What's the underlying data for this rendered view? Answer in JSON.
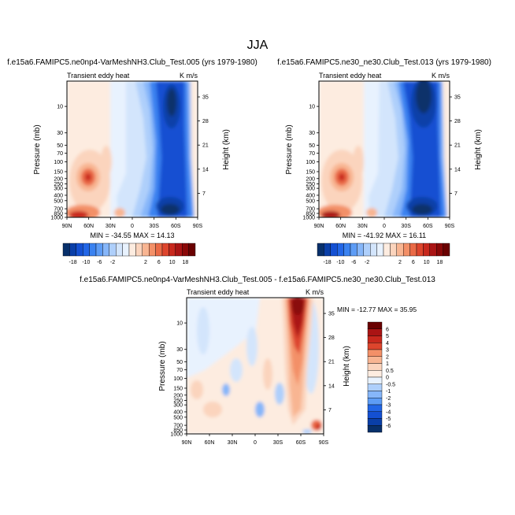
{
  "page_title": "JJA",
  "colors": {
    "neg": [
      "#08306b",
      "#0a3fa8",
      "#1450d2",
      "#2266e6",
      "#3a82f0",
      "#5d9cf5",
      "#86b6f9",
      "#aecffb",
      "#d3e5fc",
      "#e8f2fe"
    ],
    "pos": [
      "#fdece0",
      "#fbd4bd",
      "#f8b592",
      "#f39068",
      "#ea6a46",
      "#dd452d",
      "#c8281d",
      "#aa1414",
      "#8a0808",
      "#6a0000"
    ]
  },
  "chart_data": [
    {
      "type": "heatmap",
      "title": "f.e15a6.FAMIPC5.ne0np4-VarMeshNH3.Club_Test.005 (yrs 1979-1980)",
      "left_label": "Transient eddy heat",
      "right_label": "K m/s",
      "xlabel": "",
      "ylabel": "Pressure (mb)",
      "ylabel_right": "Height (km)",
      "x_ticks": [
        "90N",
        "60N",
        "30N",
        "0",
        "30S",
        "60S",
        "90S"
      ],
      "y_ticks": [
        "10",
        "30",
        "50",
        "70",
        "100",
        "150",
        "200",
        "250",
        "300",
        "400",
        "500",
        "700",
        "850",
        "1000"
      ],
      "y2_ticks": [
        "35",
        "28",
        "21",
        "14",
        "7"
      ],
      "stats": "MIN = -34.55  MAX = 14.13",
      "colorbar_labels": [
        "-18",
        "-10",
        "-6",
        "-2",
        "2",
        "6",
        "10",
        "18"
      ],
      "features": [
        {
          "x": 66,
          "p": 210,
          "value": 10
        },
        {
          "x": 70,
          "p": 950,
          "value": 14
        },
        {
          "x": -58,
          "p": 18,
          "value": -34
        },
        {
          "x": -55,
          "p": 600,
          "value": -25
        }
      ]
    },
    {
      "type": "heatmap",
      "title": "f.e15a6.FAMIPC5.ne30_ne30.Club_Test.013 (yrs 1979-1980)",
      "left_label": "Transient eddy heat",
      "right_label": "K m/s",
      "xlabel": "",
      "ylabel": "Pressure (mb)",
      "ylabel_right": "Height (km)",
      "x_ticks": [
        "90N",
        "60N",
        "30N",
        "0",
        "30S",
        "60S",
        "90S"
      ],
      "y_ticks": [
        "10",
        "30",
        "50",
        "70",
        "100",
        "150",
        "200",
        "250",
        "300",
        "400",
        "500",
        "700",
        "850",
        "1000"
      ],
      "y2_ticks": [
        "35",
        "28",
        "21",
        "14",
        "7"
      ],
      "stats": "MIN = -41.92  MAX = 16.11",
      "colorbar_labels": [
        "-18",
        "-10",
        "-6",
        "-2",
        "2",
        "6",
        "10",
        "18"
      ],
      "features": [
        {
          "x": 66,
          "p": 210,
          "value": 11
        },
        {
          "x": 70,
          "p": 950,
          "value": 16
        },
        {
          "x": -58,
          "p": 14,
          "value": -42
        },
        {
          "x": -55,
          "p": 600,
          "value": -28
        }
      ]
    },
    {
      "type": "heatmap",
      "title": "f.e15a6.FAMIPC5.ne0np4-VarMeshNH3.Club_Test.005 - f.e15a6.FAMIPC5.ne30_ne30.Club_Test.013",
      "left_label": "Transient eddy heat",
      "right_label": "K m/s",
      "xlabel": "",
      "ylabel": "Pressure (mb)",
      "ylabel_right": "Height (km)",
      "x_ticks": [
        "90N",
        "60N",
        "30N",
        "0",
        "30S",
        "60S",
        "90S"
      ],
      "y_ticks": [
        "10",
        "30",
        "50",
        "70",
        "100",
        "150",
        "200",
        "250",
        "300",
        "400",
        "500",
        "700",
        "850",
        "1000"
      ],
      "y2_ticks": [
        "35",
        "28",
        "21",
        "14",
        "7"
      ],
      "stats": "MIN = -12.77  MAX =  35.95",
      "colorbar_labels": [
        "6",
        "5",
        "4",
        "3",
        "2",
        "1",
        "0.5",
        "0",
        "-0.5",
        "-1",
        "-2",
        "-3",
        "-4",
        "-5",
        "-6"
      ],
      "features": [
        {
          "x": -50,
          "p": 12,
          "value": 36
        },
        {
          "x": -40,
          "p": 150,
          "value": 4
        },
        {
          "x": -82,
          "p": 850,
          "value": 3
        },
        {
          "x": 20,
          "p": 180,
          "value": -1
        }
      ]
    }
  ]
}
